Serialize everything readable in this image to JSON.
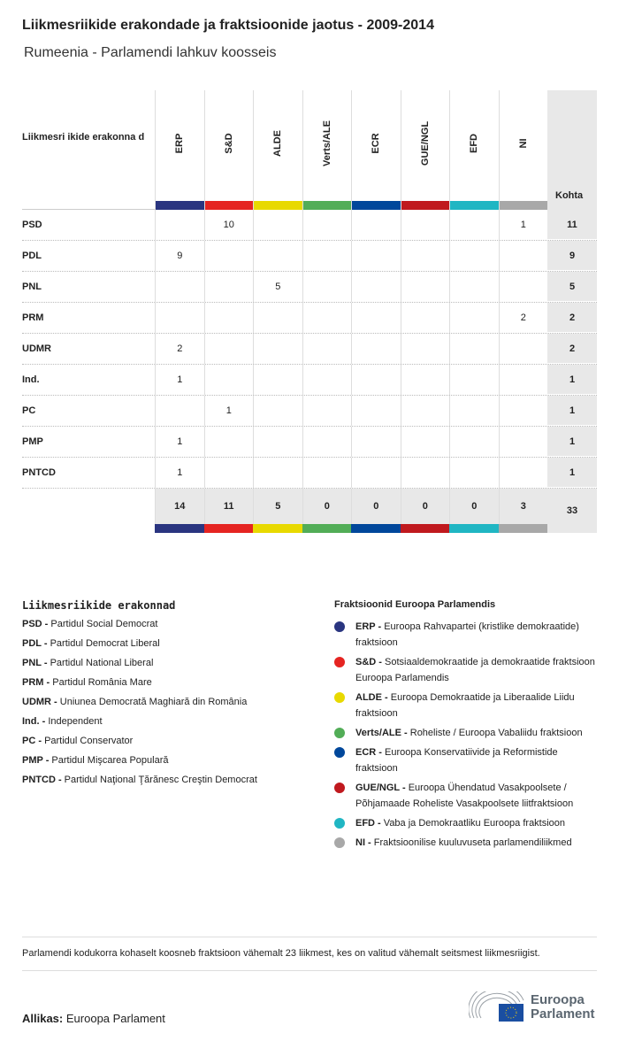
{
  "title": "Liikmesriikide erakondade ja fraktsioonide jaotus - 2009-2014",
  "subtitle": "Rumeenia - Parlamendi lahkuv koosseis",
  "chart_data": {
    "type": "table",
    "row_header": "Liikmesri ikide erakonna d",
    "total_header": "Kohta",
    "groups": [
      {
        "name": "ERP",
        "color": "#2a3580"
      },
      {
        "name": "S&D",
        "color": "#e52421"
      },
      {
        "name": "ALDE",
        "color": "#e8d900"
      },
      {
        "name": "Verts/ALE",
        "color": "#52ad57"
      },
      {
        "name": "ECR",
        "color": "#00479b"
      },
      {
        "name": "GUE/NGL",
        "color": "#c0191e"
      },
      {
        "name": "EFD",
        "color": "#20b6c3"
      },
      {
        "name": "NI",
        "color": "#a8a8a8"
      }
    ],
    "rows": [
      {
        "party": "PSD",
        "values": [
          null,
          10,
          null,
          null,
          null,
          null,
          null,
          1
        ],
        "total": 11
      },
      {
        "party": "PDL",
        "values": [
          9,
          null,
          null,
          null,
          null,
          null,
          null,
          null
        ],
        "total": 9
      },
      {
        "party": "PNL",
        "values": [
          null,
          null,
          5,
          null,
          null,
          null,
          null,
          null
        ],
        "total": 5
      },
      {
        "party": "PRM",
        "values": [
          null,
          null,
          null,
          null,
          null,
          null,
          null,
          2
        ],
        "total": 2
      },
      {
        "party": "UDMR",
        "values": [
          2,
          null,
          null,
          null,
          null,
          null,
          null,
          null
        ],
        "total": 2
      },
      {
        "party": "Ind.",
        "values": [
          1,
          null,
          null,
          null,
          null,
          null,
          null,
          null
        ],
        "total": 1
      },
      {
        "party": "PC",
        "values": [
          null,
          1,
          null,
          null,
          null,
          null,
          null,
          null
        ],
        "total": 1
      },
      {
        "party": "PMP",
        "values": [
          1,
          null,
          null,
          null,
          null,
          null,
          null,
          null
        ],
        "total": 1
      },
      {
        "party": "PNTCD",
        "values": [
          1,
          null,
          null,
          null,
          null,
          null,
          null,
          null
        ],
        "total": 1
      }
    ],
    "group_totals": [
      14,
      11,
      5,
      0,
      0,
      0,
      0,
      3
    ],
    "grand_total": 33
  },
  "legend_parties": {
    "title": "Liikmesriikide erakonnad",
    "items": [
      {
        "abbr": "PSD -",
        "name": "Partidul Social Democrat"
      },
      {
        "abbr": "PDL -",
        "name": "Partidul Democrat Liberal"
      },
      {
        "abbr": "PNL -",
        "name": "Partidul National Liberal"
      },
      {
        "abbr": "PRM -",
        "name": "Partidul România Mare"
      },
      {
        "abbr": "UDMR -",
        "name": "Uniunea Democrată Maghiară din România"
      },
      {
        "abbr": "Ind. -",
        "name": "Independent"
      },
      {
        "abbr": "PC -",
        "name": "Partidul Conservator"
      },
      {
        "abbr": "PMP -",
        "name": "Partidul Mişcarea Populară"
      },
      {
        "abbr": "PNTCD -",
        "name": "Partidul Naţional Ţărănesc Creştin Democrat"
      }
    ]
  },
  "legend_groups": {
    "title": "Fraktsioonid Euroopa Parlamendis",
    "items": [
      {
        "abbr": "ERP -",
        "name": "Euroopa Rahvapartei (kristlike demokraatide) fraktsioon"
      },
      {
        "abbr": "S&D -",
        "name": "Sotsiaaldemokraatide ja demokraatide fraktsioon Euroopa Parlamendis"
      },
      {
        "abbr": "ALDE -",
        "name": "Euroopa Demokraatide ja Liberaalide Liidu fraktsioon"
      },
      {
        "abbr": "Verts/ALE -",
        "name": "Roheliste / Euroopa Vabaliidu fraktsioon"
      },
      {
        "abbr": "ECR -",
        "name": "Euroopa Konservatiivide ja Reformistide fraktsioon"
      },
      {
        "abbr": "GUE/NGL -",
        "name": "Euroopa Ühendatud Vasakpoolsete / Põhjamaade Roheliste Vasakpoolsete liitfraktsioon"
      },
      {
        "abbr": "EFD -",
        "name": "Vaba ja Demokraatliku Euroopa fraktsioon"
      },
      {
        "abbr": "NI -",
        "name": "Fraktsioonilise kuuluvuseta parlamendiliikmed"
      }
    ]
  },
  "note": "Parlamendi kodukorra kohaselt koosneb fraktsioon vähemalt 23 liikmest, kes on valitud vähemalt seitsmest liikmesriigist.",
  "source": {
    "label": "Allikas:",
    "value": "Euroopa Parlament"
  },
  "logo": {
    "line1": "Euroopa",
    "line2": "Parlament"
  }
}
